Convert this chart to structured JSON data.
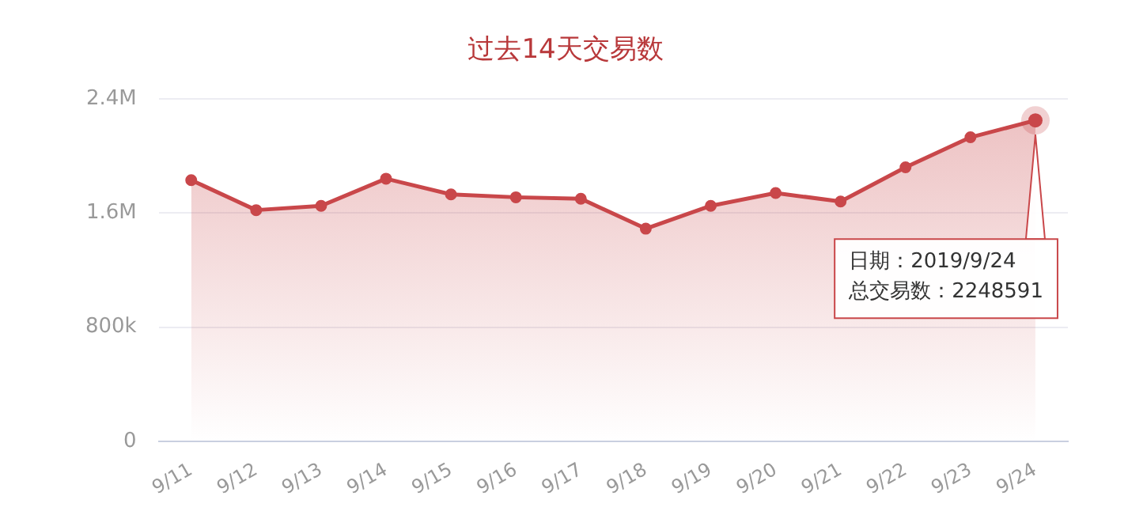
{
  "chart_data": {
    "type": "area",
    "title": "过去14天交易数",
    "categories": [
      "9/11",
      "9/12",
      "9/13",
      "9/14",
      "9/15",
      "9/16",
      "9/17",
      "9/18",
      "9/19",
      "9/20",
      "9/21",
      "9/22",
      "9/23",
      "9/24"
    ],
    "series": [
      {
        "color": "#c9474a",
        "values": [
          1830000,
          1620000,
          1650000,
          1840000,
          1730000,
          1710000,
          1700000,
          1490000,
          1650000,
          1740000,
          1680000,
          1920000,
          2130000,
          2248591
        ]
      }
    ],
    "ylim": [
      0,
      2400000
    ],
    "yticks": [
      0,
      {
        "value": 800000,
        "label": "800k"
      },
      {
        "value": 1600000,
        "label": "1.6M"
      },
      {
        "value": 2400000,
        "label": "2.4M"
      }
    ],
    "grid": "y",
    "legend": false,
    "marker": "circle",
    "line_style": "solid",
    "annotations": [
      {
        "text": "日期：2019/9/24\n总交易数：2248591",
        "x": "9/24",
        "y": 2248591
      }
    ]
  }
}
